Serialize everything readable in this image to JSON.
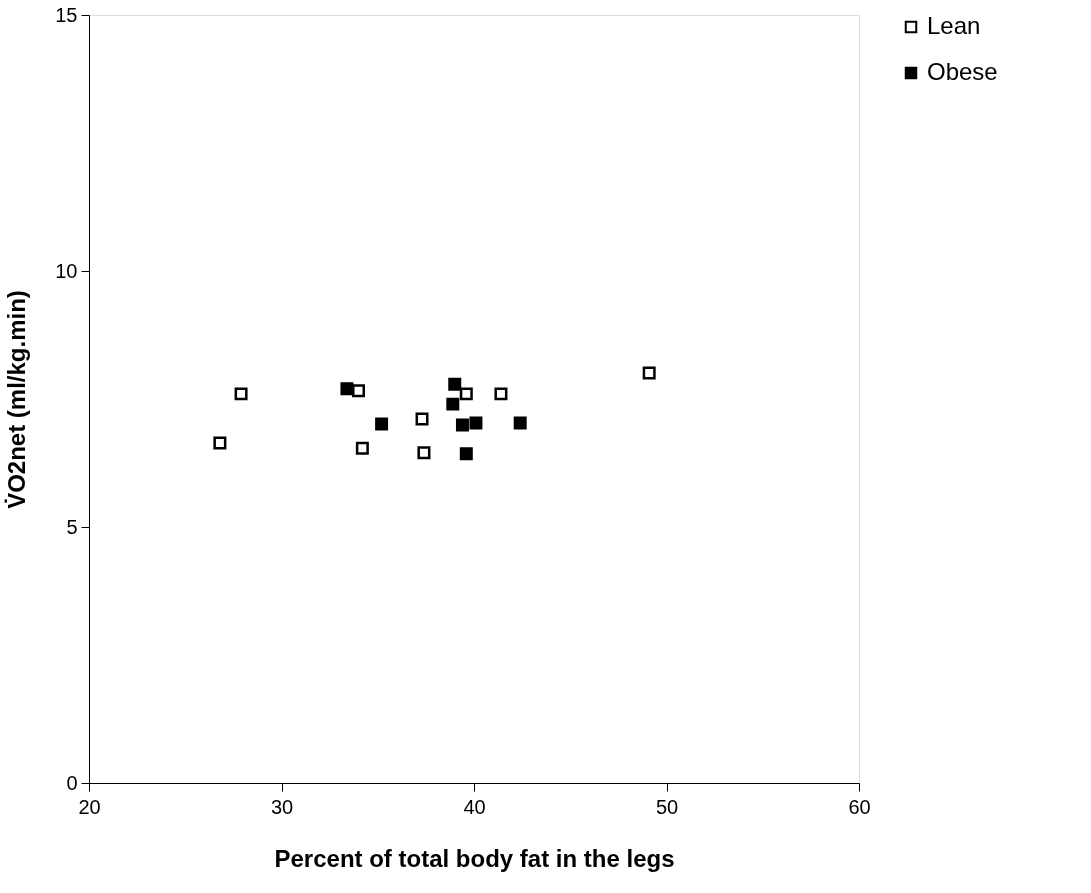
{
  "chart_data": {
    "type": "scatter",
    "xlabel": "Percent of total body fat in the legs",
    "ylabel": "V̇O2net (ml/kg.min)",
    "xlim": [
      20,
      60
    ],
    "xticks": [
      20,
      30,
      40,
      50,
      60
    ],
    "ylim": [
      0,
      15
    ],
    "yticks": [
      0,
      5,
      10,
      15
    ],
    "grid": false,
    "legend": "right",
    "marker": "square",
    "series": [
      {
        "name": "Lean",
        "color": "#000000",
        "x": [
          26.8,
          27.9,
          34.0,
          34.2,
          37.3,
          37.4,
          39.6,
          41.4,
          49.1
        ],
        "values": [
          6.64,
          7.6,
          7.66,
          6.54,
          7.11,
          6.45,
          7.6,
          7.6,
          8.01
        ]
      },
      {
        "name": "Obese",
        "color": "#000000",
        "x": [
          33.4,
          35.2,
          39.0,
          38.9,
          39.4,
          40.1,
          39.6,
          42.4
        ],
        "values": [
          7.7,
          7.01,
          7.79,
          7.4,
          6.99,
          7.03,
          6.43,
          7.03
        ]
      }
    ]
  }
}
